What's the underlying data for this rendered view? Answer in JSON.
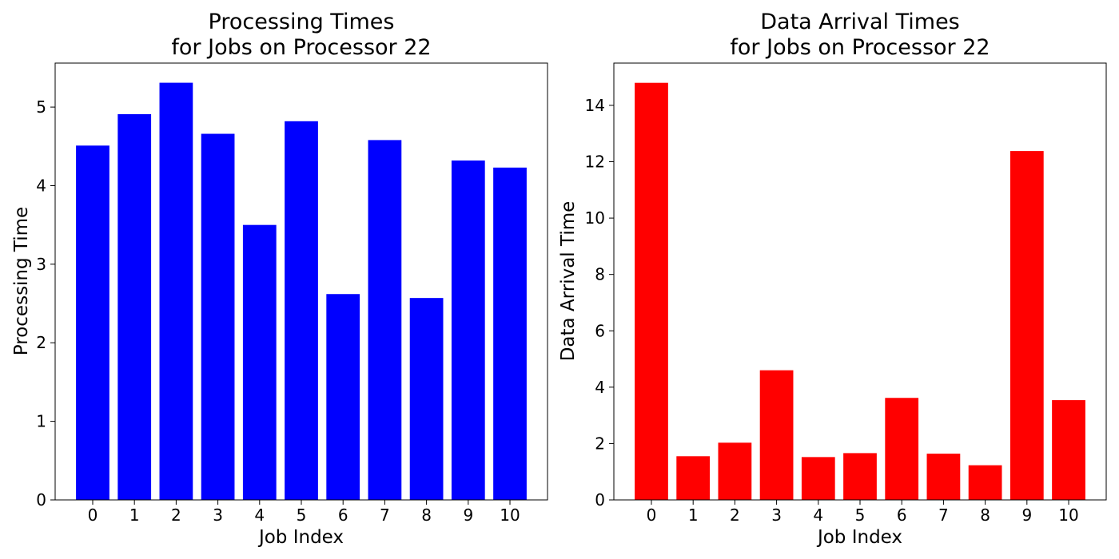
{
  "chart_data": [
    {
      "type": "bar",
      "title": [
        "Processing Times",
        "for Jobs on Processor 22"
      ],
      "xlabel": "Job Index",
      "ylabel": "Processing Time",
      "categories": [
        "0",
        "1",
        "2",
        "3",
        "4",
        "5",
        "6",
        "7",
        "8",
        "9",
        "10"
      ],
      "values": [
        4.51,
        4.91,
        5.31,
        4.66,
        3.5,
        4.82,
        2.62,
        4.58,
        2.57,
        4.32,
        4.23
      ],
      "ylim": [
        0,
        5.56
      ],
      "yticks": [
        0,
        1,
        2,
        3,
        4,
        5
      ],
      "color": "#0000ff",
      "grid": false
    },
    {
      "type": "bar",
      "title": [
        "Data Arrival Times",
        "for Jobs on Processor 22"
      ],
      "xlabel": "Job Index",
      "ylabel": "Data Arrival Time",
      "categories": [
        "0",
        "1",
        "2",
        "3",
        "4",
        "5",
        "6",
        "7",
        "8",
        "9",
        "10"
      ],
      "values": [
        14.8,
        1.55,
        2.03,
        4.6,
        1.52,
        1.66,
        3.62,
        1.64,
        1.23,
        12.38,
        3.54
      ],
      "ylim": [
        0,
        15.5
      ],
      "yticks": [
        0,
        2,
        4,
        6,
        8,
        10,
        12,
        14
      ],
      "color": "#ff0000",
      "grid": false
    }
  ]
}
